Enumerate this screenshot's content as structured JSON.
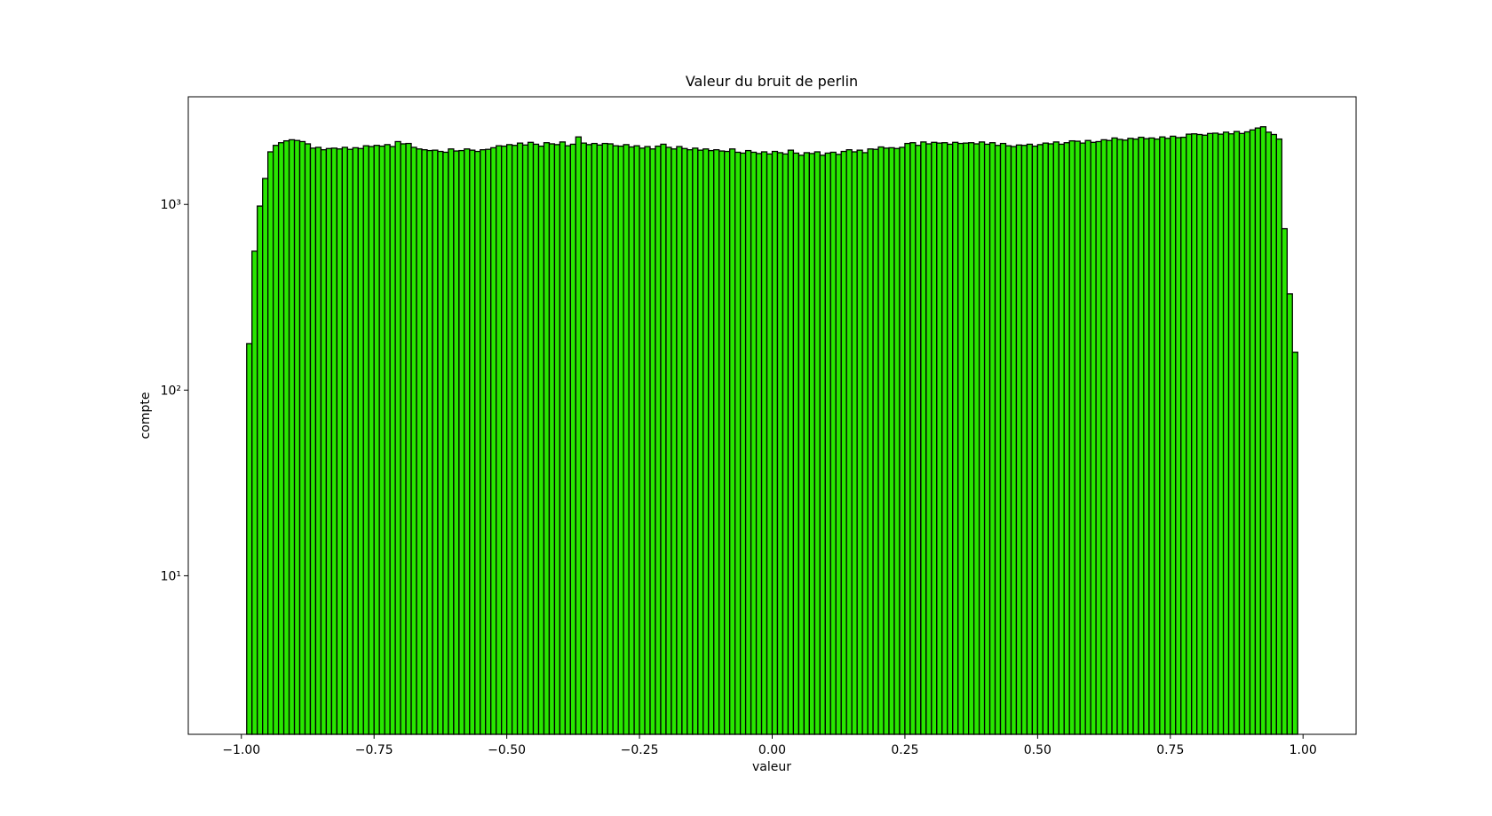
{
  "chart_data": {
    "type": "histogram",
    "title": "Valeur du bruit de perlin",
    "xlabel": "valeur",
    "ylabel": "compte",
    "color": "#28e600",
    "edgecolor": "#000000",
    "yscale": "log",
    "xlim": [
      -1.1,
      1.1
    ],
    "ylim": [
      1.4,
      3800
    ],
    "xticks": [
      {
        "value": -1,
        "label": "−1.00"
      },
      {
        "value": -0.75,
        "label": "−0.75"
      },
      {
        "value": -0.5,
        "label": "−0.50"
      },
      {
        "value": -0.25,
        "label": "−0.25"
      },
      {
        "value": 0,
        "label": "0.00"
      },
      {
        "value": 0.25,
        "label": "0.25"
      },
      {
        "value": 0.5,
        "label": "0.50"
      },
      {
        "value": 0.75,
        "label": "0.75"
      },
      {
        "value": 1,
        "label": "1.00"
      }
    ],
    "yticks": [
      {
        "value": 10,
        "label": "10¹"
      },
      {
        "value": 100,
        "label": "10²"
      },
      {
        "value": 1000,
        "label": "10³"
      }
    ],
    "bins": [
      -0.99,
      -0.98,
      -0.97,
      -0.96,
      -0.95,
      -0.94,
      -0.93,
      -0.92,
      -0.91,
      -0.9,
      -0.89,
      -0.88,
      -0.87,
      -0.86,
      -0.85,
      -0.84,
      -0.83,
      -0.82,
      -0.81,
      -0.8,
      -0.79,
      -0.78,
      -0.77,
      -0.76,
      -0.75,
      -0.74,
      -0.73,
      -0.72,
      -0.71,
      -0.7,
      -0.69,
      -0.68,
      -0.67,
      -0.66,
      -0.65,
      -0.64,
      -0.63,
      -0.62,
      -0.61,
      -0.6,
      -0.59,
      -0.58,
      -0.57,
      -0.56,
      -0.55,
      -0.54,
      -0.53,
      -0.52,
      -0.51,
      -0.5,
      -0.49,
      -0.48,
      -0.47,
      -0.46,
      -0.45,
      -0.44,
      -0.43,
      -0.42,
      -0.41,
      -0.4,
      -0.39,
      -0.38,
      -0.37,
      -0.36,
      -0.35,
      -0.34,
      -0.33,
      -0.32,
      -0.31,
      -0.3,
      -0.29,
      -0.28,
      -0.27,
      -0.26,
      -0.25,
      -0.24,
      -0.23,
      -0.22,
      -0.21,
      -0.2,
      -0.19,
      -0.18,
      -0.17,
      -0.16,
      -0.15,
      -0.14,
      -0.13,
      -0.12,
      -0.11,
      -0.1,
      -0.09,
      -0.08,
      -0.07,
      -0.06,
      -0.05,
      -0.04,
      -0.03,
      -0.02,
      -0.01,
      0,
      0.01,
      0.02,
      0.03,
      0.04,
      0.05,
      0.06,
      0.07,
      0.08,
      0.09,
      0.1,
      0.11,
      0.12,
      0.13,
      0.14,
      0.15,
      0.16,
      0.17,
      0.18,
      0.19,
      0.2,
      0.21,
      0.22,
      0.23,
      0.24,
      0.25,
      0.26,
      0.27,
      0.28,
      0.29,
      0.3,
      0.31,
      0.32,
      0.33,
      0.34,
      0.35,
      0.36,
      0.37,
      0.38,
      0.39,
      0.4,
      0.41,
      0.42,
      0.43,
      0.44,
      0.45,
      0.46,
      0.47,
      0.48,
      0.49,
      0.5,
      0.51,
      0.52,
      0.53,
      0.54,
      0.55,
      0.56,
      0.57,
      0.58,
      0.59,
      0.6,
      0.61,
      0.62,
      0.63,
      0.64,
      0.65,
      0.66,
      0.67,
      0.68,
      0.69,
      0.7,
      0.71,
      0.72,
      0.73,
      0.74,
      0.75,
      0.76,
      0.77,
      0.78,
      0.79,
      0.8,
      0.81,
      0.82,
      0.83,
      0.84,
      0.85,
      0.86,
      0.87,
      0.88,
      0.89,
      0.9,
      0.91,
      0.92,
      0.93,
      0.94,
      0.95,
      0.96,
      0.97,
      0.98,
      0.99
    ],
    "values": [
      178,
      560,
      980,
      1380,
      1920,
      2080,
      2150,
      2200,
      2230,
      2210,
      2180,
      2120,
      2010,
      2030,
      1970,
      2000,
      2010,
      1990,
      2030,
      1980,
      2020,
      2000,
      2070,
      2050,
      2080,
      2060,
      2100,
      2050,
      2180,
      2120,
      2130,
      2030,
      1990,
      1970,
      1950,
      1960,
      1930,
      1910,
      1990,
      1940,
      1950,
      1990,
      1960,
      1930,
      1970,
      1980,
      2020,
      2070,
      2060,
      2100,
      2080,
      2140,
      2090,
      2160,
      2110,
      2060,
      2150,
      2120,
      2100,
      2170,
      2070,
      2110,
      2310,
      2140,
      2100,
      2130,
      2090,
      2130,
      2120,
      2070,
      2060,
      2100,
      2040,
      2070,
      2010,
      2050,
      1990,
      2060,
      2110,
      2030,
      1990,
      2050,
      2000,
      1970,
      2010,
      1960,
      1990,
      1950,
      1970,
      1940,
      1930,
      1990,
      1910,
      1890,
      1950,
      1910,
      1880,
      1920,
      1870,
      1930,
      1900,
      1870,
      1960,
      1890,
      1840,
      1900,
      1880,
      1920,
      1840,
      1890,
      1910,
      1860,
      1930,
      1970,
      1920,
      1960,
      1900,
      1990,
      1980,
      2040,
      2010,
      2020,
      2000,
      2030,
      2130,
      2150,
      2080,
      2170,
      2120,
      2160,
      2140,
      2150,
      2110,
      2160,
      2130,
      2140,
      2150,
      2120,
      2170,
      2110,
      2150,
      2080,
      2130,
      2070,
      2050,
      2090,
      2080,
      2110,
      2060,
      2100,
      2140,
      2120,
      2170,
      2110,
      2150,
      2200,
      2190,
      2140,
      2210,
      2160,
      2180,
      2230,
      2210,
      2280,
      2240,
      2220,
      2270,
      2250,
      2300,
      2260,
      2280,
      2250,
      2310,
      2270,
      2330,
      2290,
      2300,
      2390,
      2400,
      2380,
      2360,
      2410,
      2420,
      2390,
      2450,
      2400,
      2470,
      2410,
      2460,
      2520,
      2580,
      2620,
      2450,
      2380,
      2250,
      740,
      330,
      160
    ]
  }
}
